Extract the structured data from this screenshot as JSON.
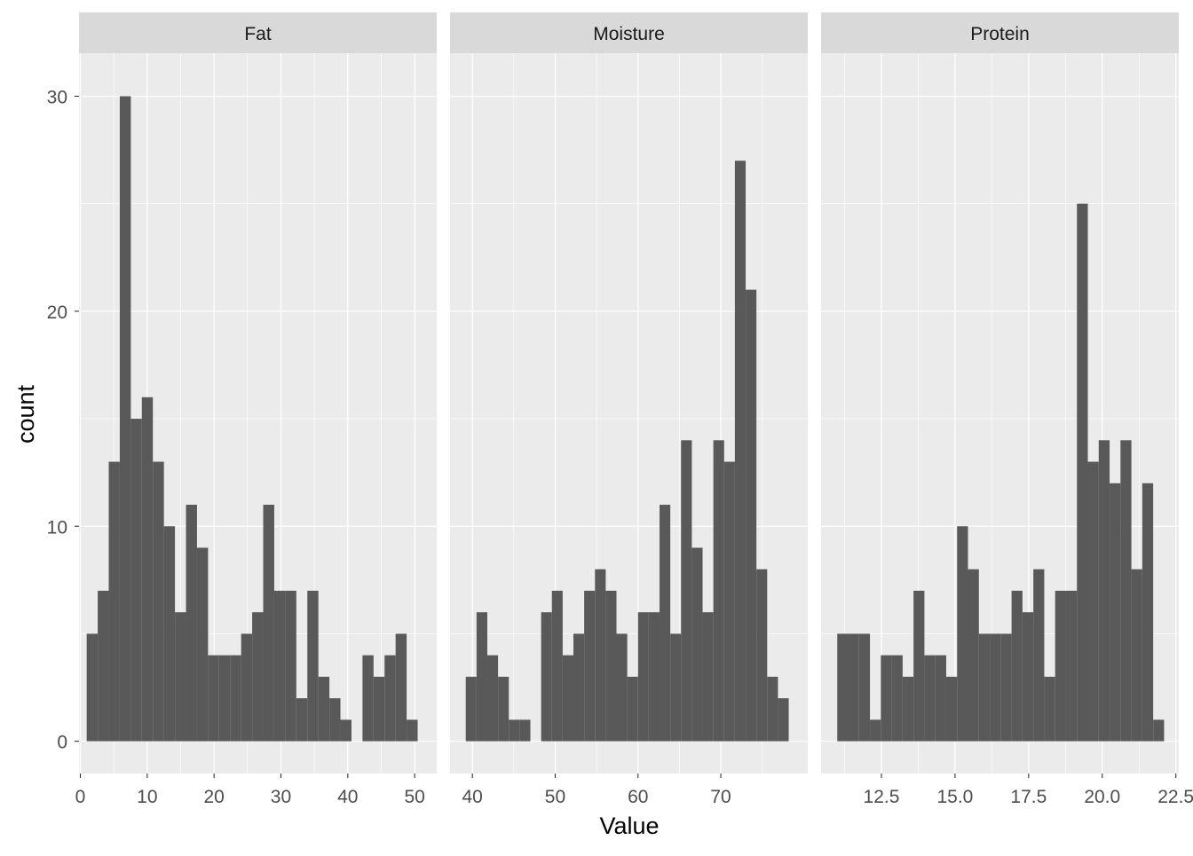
{
  "chart_data": {
    "type": "bar",
    "subtype": "faceted-histogram",
    "xlabel": "Value",
    "ylabel": "count",
    "ylim": [
      -1.5,
      32
    ],
    "y_ticks": [
      0,
      10,
      20,
      30
    ],
    "grid": true,
    "legend": "none",
    "colors": {
      "bar": "#595959",
      "panel_bg": "#ebebeb",
      "strip_bg": "#d9d9d9",
      "grid": "#ffffff",
      "axis_text": "#4d4d4d",
      "title_text": "#000000"
    },
    "facets": [
      {
        "name": "Fat",
        "xlim": [
          -0.2,
          53.3
        ],
        "x_ticks": [
          0,
          10,
          20,
          30,
          40,
          50
        ],
        "x_tick_labels": [
          "0",
          "10",
          "20",
          "30",
          "40",
          "50"
        ],
        "bin_start": 0.95,
        "bin_width": 1.65,
        "counts": [
          5,
          7,
          13,
          30,
          15,
          16,
          13,
          10,
          6,
          11,
          9,
          4,
          4,
          4,
          5,
          6,
          11,
          7,
          7,
          2,
          7,
          3,
          2,
          1,
          0,
          4,
          3,
          4,
          5,
          1
        ]
      },
      {
        "name": "Moisture",
        "xlim": [
          37.3,
          80.5
        ],
        "x_ticks": [
          40,
          50,
          60,
          70
        ],
        "x_tick_labels": [
          "40",
          "50",
          "60",
          "70"
        ],
        "bin_start": 39.2,
        "bin_width": 1.3,
        "counts": [
          3,
          6,
          4,
          3,
          1,
          1,
          0,
          6,
          7,
          4,
          5,
          7,
          8,
          7,
          5,
          3,
          6,
          6,
          11,
          5,
          14,
          9,
          6,
          14,
          13,
          27,
          21,
          8,
          3,
          2
        ]
      },
      {
        "name": "Protein",
        "xlim": [
          10.45,
          22.6
        ],
        "x_ticks": [
          12.5,
          15.0,
          17.5,
          20.0,
          22.5
        ],
        "x_tick_labels": [
          "12.5",
          "15.0",
          "17.5",
          "20.0",
          "22.5"
        ],
        "bin_start": 11.0,
        "bin_width": 0.37,
        "counts": [
          5,
          5,
          5,
          1,
          4,
          4,
          3,
          7,
          4,
          4,
          3,
          10,
          8,
          5,
          5,
          5,
          7,
          6,
          8,
          3,
          7,
          7,
          25,
          13,
          14,
          12,
          14,
          8,
          12,
          1
        ]
      }
    ]
  }
}
